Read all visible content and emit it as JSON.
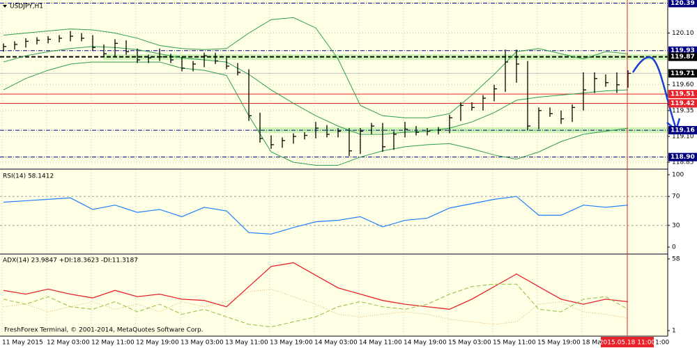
{
  "chart_data": {
    "type": "ohlc",
    "title": "USDJPY,H1",
    "footer": "FreshForex Terminal, © 2001-2014, MetaQuotes Software Corp.",
    "time_labels": [
      "11 May 2015",
      "12 May 03:00",
      "12 May 11:00",
      "12 May 19:00",
      "13 May 03:00",
      "13 May 11:00",
      "13 May 19:00",
      "14 May 03:00",
      "14 May 11:00",
      "14 May 19:00",
      "15 May 03:00",
      "15 May 11:00",
      "15 May 19:00",
      "18 Ma"
    ],
    "cursor_time": "2015.05.18 11:00",
    "time_tail": "1:00",
    "grid": true,
    "ylim": [
      118.79,
      120.42
    ],
    "yticks": [
      {
        "value": 120.1,
        "label": "120.10"
      },
      {
        "value": 119.6,
        "label": "119.60"
      },
      119.35,
      {
        "value": 119.1,
        "label": "119.10"
      },
      118.85
    ],
    "levels": [
      {
        "value": 120.39,
        "color": "#000080",
        "style": "dashdot"
      },
      {
        "value": 119.93,
        "color": "#000080",
        "style": "dashdot"
      },
      {
        "value": 119.87,
        "color": "#000000",
        "style": "dashed"
      },
      {
        "value": 119.71,
        "color": "#000000",
        "style": "faint"
      },
      {
        "value": 119.51,
        "color": "#e8222a",
        "style": "solid"
      },
      {
        "value": 119.42,
        "color": "#e8222a",
        "style": "solid"
      },
      {
        "value": 119.16,
        "color": "#000080",
        "style": "dashdot"
      },
      {
        "value": 118.9,
        "label": "118.90",
        "color": "#000080",
        "style": "dashdot"
      }
    ],
    "bar_color": "#000000",
    "high": [
      120.0,
      120.02,
      120.05,
      120.06,
      120.07,
      120.08,
      120.12,
      120.1,
      120.08,
      119.99,
      120.04,
      120.03,
      119.95,
      119.89,
      119.95,
      119.9,
      119.87,
      119.83,
      119.91,
      119.91,
      119.86,
      119.81,
      119.75,
      119.33,
      119.11,
      119.09,
      119.13,
      119.14,
      119.24,
      119.21,
      119.18,
      119.18,
      119.18,
      119.23,
      119.23,
      119.15,
      119.24,
      119.2,
      119.18,
      119.19,
      119.31,
      119.43,
      119.43,
      119.5,
      119.6,
      119.94,
      119.94,
      119.83,
      119.38,
      119.38,
      119.35,
      119.41,
      119.72,
      119.72,
      119.7,
      119.72,
      119.74
    ],
    "low": [
      119.92,
      119.94,
      119.96,
      119.99,
      120.0,
      120.01,
      120.02,
      120.02,
      119.93,
      119.87,
      119.87,
      119.89,
      119.81,
      119.81,
      119.83,
      119.81,
      119.73,
      119.73,
      119.77,
      119.8,
      119.75,
      119.69,
      119.25,
      119.04,
      118.98,
      118.99,
      119.03,
      119.07,
      119.08,
      119.09,
      119.09,
      118.91,
      118.93,
      119.12,
      118.95,
      118.97,
      119.09,
      119.11,
      119.11,
      119.12,
      119.13,
      119.25,
      119.35,
      119.35,
      119.44,
      119.53,
      119.62,
      119.16,
      119.17,
      119.29,
      119.22,
      119.24,
      119.35,
      119.52,
      119.58,
      119.52,
      119.57
    ],
    "close": [
      119.97,
      119.99,
      120.02,
      120.03,
      120.04,
      120.05,
      120.07,
      120.05,
      119.96,
      119.9,
      120.0,
      119.92,
      119.84,
      119.86,
      119.87,
      119.84,
      119.76,
      119.8,
      119.88,
      119.83,
      119.78,
      119.72,
      119.3,
      119.08,
      119.02,
      119.06,
      119.1,
      119.11,
      119.18,
      119.12,
      119.15,
      118.96,
      119.15,
      119.2,
      119.0,
      119.12,
      119.17,
      119.14,
      119.15,
      119.16,
      119.28,
      119.4,
      119.38,
      119.47,
      119.56,
      119.82,
      119.8,
      119.2,
      119.35,
      119.32,
      119.27,
      119.38,
      119.55,
      119.66,
      119.62,
      119.6,
      119.71
    ],
    "bands": [
      {
        "color": "#2e9e4a",
        "values": [
          120.08,
          120.1,
          120.12,
          120.14,
          120.13,
          120.1,
          120.05,
          119.98,
          119.95,
          119.94,
          119.95,
          120.1,
          120.23,
          120.25,
          120.15,
          119.85,
          119.4,
          119.3,
          119.28,
          119.28,
          119.32,
          119.5,
          119.7,
          119.92,
          119.95,
          119.9,
          119.85,
          119.92,
          119.9
        ]
      },
      {
        "color": "#2e9e4a",
        "values": [
          119.82,
          119.88,
          119.92,
          119.95,
          119.97,
          119.96,
          119.94,
          119.9,
          119.86,
          119.84,
          119.82,
          119.7,
          119.55,
          119.42,
          119.3,
          119.2,
          119.12,
          119.12,
          119.14,
          119.15,
          119.18,
          119.24,
          119.33,
          119.45,
          119.48,
          119.5,
          119.52,
          119.54,
          119.55
        ]
      },
      {
        "color": "#2e9e4a",
        "values": [
          119.55,
          119.66,
          119.74,
          119.8,
          119.82,
          119.82,
          119.82,
          119.82,
          119.76,
          119.74,
          119.69,
          119.3,
          118.95,
          118.85,
          118.82,
          118.82,
          118.9,
          118.96,
          119.0,
          119.02,
          119.03,
          118.98,
          118.92,
          118.88,
          118.95,
          119.05,
          119.12,
          119.15,
          119.18
        ]
      }
    ],
    "rsi": {
      "title": "RSI(14) 58.1412",
      "ylim": [
        -9.6,
        107.7
      ],
      "yticks": [
        100,
        70,
        30,
        0
      ],
      "levels": [
        70,
        30
      ],
      "color": "#1e7fff",
      "values": [
        62,
        64,
        66,
        68,
        52,
        58,
        48,
        52,
        42,
        55,
        50,
        20,
        18,
        27,
        35,
        37,
        42,
        28,
        37,
        40,
        54,
        60,
        66,
        70,
        44,
        44,
        58,
        55,
        58
      ]
    },
    "adx": {
      "title": "ADX(14) 23.9847 +DI:18.3623 -DI:11.3187",
      "ylim": [
        -3.4,
        61.9
      ],
      "yticks": [
        58,
        1
      ],
      "series": [
        {
          "color": "#e8222a",
          "style": "solid",
          "values": [
            33,
            30,
            34,
            30,
            27,
            33,
            28,
            30,
            26,
            25,
            20,
            36,
            52,
            55,
            45,
            35,
            30,
            25,
            22,
            20,
            18,
            26,
            36,
            46,
            36,
            26,
            22,
            26,
            24
          ]
        },
        {
          "color": "#8fbf3a",
          "style": "dashed",
          "values": [
            26,
            22,
            28,
            20,
            18,
            24,
            16,
            22,
            14,
            18,
            12,
            6,
            4,
            8,
            12,
            20,
            24,
            20,
            18,
            22,
            30,
            36,
            38,
            38,
            18,
            16,
            26,
            28,
            18
          ]
        },
        {
          "color": "#e0b060",
          "style": "dotted",
          "values": [
            20,
            22,
            16,
            20,
            24,
            18,
            22,
            16,
            24,
            20,
            24,
            32,
            34,
            28,
            22,
            14,
            12,
            14,
            16,
            14,
            10,
            8,
            6,
            8,
            22,
            24,
            16,
            14,
            11
          ]
        }
      ]
    }
  }
}
